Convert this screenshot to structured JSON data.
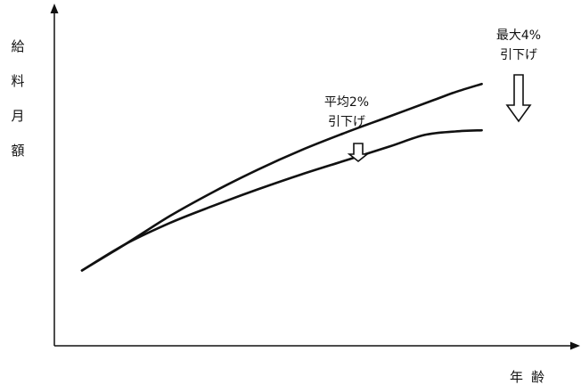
{
  "chart_data": {
    "type": "line",
    "title": "",
    "xlabel": "年齢",
    "ylabel": "給料月額",
    "grid": false,
    "legend": "none",
    "axis_ticks": "none",
    "xlim": [
      0,
      100
    ],
    "ylim": [
      0,
      100
    ],
    "colors": {
      "line": "#111111",
      "axis": "#111111",
      "arrow_fill": "#ffffff"
    },
    "series": [
      {
        "x": [
          0,
          10,
          20,
          30,
          40,
          50,
          60,
          70,
          80,
          85,
          91
        ],
        "y": [
          12.5,
          24,
          36,
          46.5,
          56,
          64.5,
          72,
          79,
          86,
          89.5,
          93
        ]
      },
      {
        "x": [
          0,
          10,
          20,
          30,
          40,
          50,
          60,
          70,
          78,
          85,
          91
        ],
        "y": [
          12.5,
          24,
          33,
          40.5,
          47.5,
          54,
          60,
          66,
          71,
          72.5,
          73
        ]
      }
    ],
    "annotations": [
      {
        "lines": [
          "平均2%",
          "引下げ"
        ],
        "arrow": "down",
        "arrow_size": "small",
        "at_x": 57
      },
      {
        "lines": [
          "最大4%",
          "引下げ"
        ],
        "arrow": "down",
        "arrow_size": "large",
        "at_x": 91
      }
    ]
  }
}
